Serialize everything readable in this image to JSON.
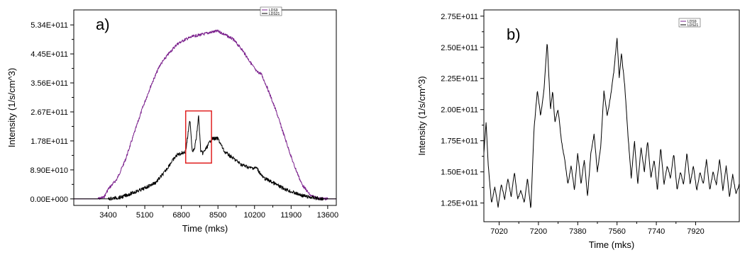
{
  "chart_data": [
    {
      "type": "line",
      "panel_label": "a)",
      "xlabel": "Time (mks)",
      "ylabel": "Intensity (1/s/cm^3)",
      "xlim": [
        1800,
        14000
      ],
      "ylim": [
        -20000000000,
        580000000000
      ],
      "x_ticks": [
        3400,
        5100,
        6800,
        8500,
        10200,
        11900,
        13600
      ],
      "x_tick_labels": [
        "3400",
        "5100",
        "6800",
        "8500",
        "10200",
        "11900",
        "13600"
      ],
      "y_ticks": [
        0,
        89000000000,
        178000000000,
        267000000000,
        356000000000,
        445000000000,
        534000000000
      ],
      "y_tick_labels": [
        "0.00E+000",
        "8.90E+010",
        "1.78E+011",
        "2.67E+011",
        "3.56E+011",
        "4.45E+011",
        "5.34E+011"
      ],
      "grid": false,
      "legend_placement": "top-right",
      "highlight_box": {
        "x": [
          7000,
          8200
        ],
        "y": [
          110000000000,
          270000000000
        ],
        "color": "#e02020"
      },
      "series": [
        {
          "name": "LDS9",
          "color": "#7a1f8c",
          "x": [
            1800,
            2900,
            3200,
            3400,
            3800,
            4200,
            4600,
            5000,
            5400,
            5800,
            6200,
            6600,
            7000,
            7400,
            7800,
            8200,
            8500,
            8800,
            9200,
            9600,
            10000,
            10300,
            10500,
            10800,
            11200,
            11600,
            12000,
            12400,
            12800,
            13200,
            13600,
            14000
          ],
          "values": [
            0,
            0,
            5000000000,
            30000000000,
            60000000000,
            120000000000,
            200000000000,
            280000000000,
            350000000000,
            410000000000,
            445000000000,
            475000000000,
            490000000000,
            500000000000,
            505000000000,
            512000000000,
            515000000000,
            505000000000,
            490000000000,
            460000000000,
            420000000000,
            390000000000,
            385000000000,
            340000000000,
            270000000000,
            190000000000,
            110000000000,
            45000000000,
            10000000000,
            1000000000,
            0,
            0
          ]
        },
        {
          "name": "LDS21",
          "color": "#000000",
          "x": [
            1800,
            3400,
            4000,
            4400,
            5000,
            5600,
            6000,
            6300,
            6600,
            7000,
            7200,
            7300,
            7400,
            7500,
            7600,
            7700,
            7800,
            8000,
            8200,
            8500,
            8800,
            9200,
            9600,
            10000,
            10300,
            10600,
            11000,
            11400,
            11800,
            12200,
            12600,
            13000,
            13400,
            14000
          ],
          "values": [
            0,
            0,
            5000000000,
            15000000000,
            30000000000,
            50000000000,
            80000000000,
            110000000000,
            135000000000,
            145000000000,
            245000000000,
            150000000000,
            150000000000,
            190000000000,
            255000000000,
            145000000000,
            140000000000,
            160000000000,
            185000000000,
            185000000000,
            145000000000,
            125000000000,
            105000000000,
            95000000000,
            95000000000,
            65000000000,
            52000000000,
            37000000000,
            25000000000,
            15000000000,
            7000000000,
            3000000000,
            0,
            0
          ]
        }
      ]
    },
    {
      "type": "line",
      "panel_label": "b)",
      "xlabel": "Time (mks)",
      "ylabel": "Intensity (1/s/cm^3)",
      "xlim": [
        6950,
        8120
      ],
      "ylim": [
        110000000000,
        280000000000
      ],
      "x_ticks": [
        7020,
        7200,
        7380,
        7560,
        7740,
        7920
      ],
      "x_tick_labels": [
        "7020",
        "7200",
        "7380",
        "7560",
        "7740",
        "7920"
      ],
      "y_ticks": [
        125000000000,
        150000000000,
        175000000000,
        200000000000,
        225000000000,
        250000000000,
        275000000000
      ],
      "y_tick_labels": [
        "1.25E+011",
        "1.50E+011",
        "1.75E+011",
        "2.00E+011",
        "2.25E+011",
        "2.50E+011",
        "2.75E+011"
      ],
      "grid": false,
      "legend_placement": "top-right",
      "series": [
        {
          "name": "LDS9",
          "color": "#7a1f8c",
          "x": [],
          "values": []
        },
        {
          "name": "LDS21",
          "color": "#000000",
          "x": [
            6950,
            6960,
            6970,
            6985,
            7000,
            7015,
            7030,
            7045,
            7060,
            7075,
            7090,
            7105,
            7120,
            7135,
            7150,
            7165,
            7180,
            7195,
            7210,
            7225,
            7240,
            7255,
            7265,
            7275,
            7290,
            7305,
            7320,
            7335,
            7350,
            7365,
            7380,
            7395,
            7410,
            7425,
            7440,
            7455,
            7470,
            7485,
            7500,
            7515,
            7530,
            7545,
            7560,
            7570,
            7580,
            7595,
            7610,
            7625,
            7640,
            7655,
            7670,
            7685,
            7700,
            7715,
            7730,
            7745,
            7760,
            7775,
            7790,
            7805,
            7820,
            7835,
            7850,
            7865,
            7880,
            7895,
            7910,
            7925,
            7940,
            7955,
            7970,
            7985,
            8000,
            8015,
            8030,
            8045,
            8060,
            8075,
            8090,
            8105,
            8120
          ],
          "values": [
            165000000000,
            190000000000,
            155000000000,
            125000000000,
            138000000000,
            122000000000,
            140000000000,
            128000000000,
            145000000000,
            130000000000,
            150000000000,
            128000000000,
            135000000000,
            125000000000,
            145000000000,
            120000000000,
            185000000000,
            215000000000,
            195000000000,
            215000000000,
            255000000000,
            200000000000,
            215000000000,
            190000000000,
            200000000000,
            175000000000,
            160000000000,
            140000000000,
            155000000000,
            135000000000,
            165000000000,
            140000000000,
            160000000000,
            130000000000,
            165000000000,
            180000000000,
            150000000000,
            170000000000,
            215000000000,
            195000000000,
            210000000000,
            230000000000,
            258000000000,
            225000000000,
            245000000000,
            220000000000,
            180000000000,
            145000000000,
            175000000000,
            140000000000,
            170000000000,
            150000000000,
            175000000000,
            145000000000,
            160000000000,
            135000000000,
            170000000000,
            140000000000,
            155000000000,
            145000000000,
            165000000000,
            135000000000,
            150000000000,
            140000000000,
            165000000000,
            140000000000,
            155000000000,
            135000000000,
            150000000000,
            140000000000,
            160000000000,
            135000000000,
            150000000000,
            140000000000,
            160000000000,
            135000000000,
            155000000000,
            130000000000,
            148000000000,
            132000000000,
            140000000000
          ]
        }
      ]
    }
  ]
}
